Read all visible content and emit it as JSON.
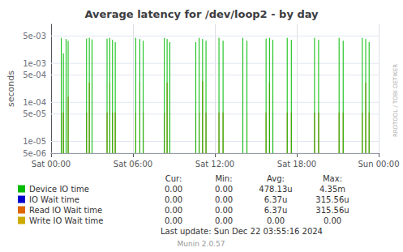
{
  "chart_data": {
    "type": "bar",
    "title": "Average latency for /dev/loop2 - by day",
    "ylabel": "seconds",
    "log": "y",
    "grid": true,
    "xlim": [
      0,
      24
    ],
    "xticks": [
      {
        "value": 0,
        "label": "Sat 00:00"
      },
      {
        "value": 6,
        "label": "Sat 06:00"
      },
      {
        "value": 12,
        "label": "Sat 12:00"
      },
      {
        "value": 18,
        "label": "Sat 18:00"
      },
      {
        "value": 24,
        "label": "Sun 00:00"
      }
    ],
    "ylim": [
      5e-06,
      0.01
    ],
    "yticks": [
      {
        "value": 5e-06,
        "label": "5e-06"
      },
      {
        "value": 1e-05,
        "label": "1e-05"
      },
      {
        "value": 5e-05,
        "label": "5e-05"
      },
      {
        "value": 0.0001,
        "label": "1e-04"
      },
      {
        "value": 0.0005,
        "label": "5e-04"
      },
      {
        "value": 0.001,
        "label": "1e-03"
      },
      {
        "value": 0.005,
        "label": "5e-03"
      }
    ],
    "x": [
      0.75,
      0.9,
      1.1,
      1.25,
      2.6,
      2.8,
      3.0,
      4.1,
      4.3,
      4.5,
      4.7,
      6.2,
      6.5,
      6.75,
      8.3,
      8.5,
      8.7,
      10.6,
      10.85,
      11.1,
      11.35,
      12.3,
      12.6,
      14.05,
      14.35,
      15.75,
      16.0,
      16.25,
      17.3,
      17.6,
      19.3,
      19.6,
      21.1,
      21.4,
      22.8,
      23.05,
      23.3
    ],
    "series": [
      {
        "name": "Device IO time",
        "color": "#00bb00",
        "values": [
          0.0045,
          0.0018,
          0.0042,
          0.0038,
          0.0043,
          0.0045,
          0.0041,
          0.0043,
          0.0045,
          0.004,
          0.0035,
          0.0045,
          0.0042,
          0.0038,
          0.0045,
          0.0042,
          0.0035,
          0.0035,
          0.0045,
          0.0042,
          0.0038,
          0.0045,
          0.0038,
          0.0045,
          0.0038,
          0.0043,
          0.0045,
          0.004,
          0.0045,
          0.004,
          0.0045,
          0.004,
          0.0045,
          0.0038,
          0.0045,
          0.0042,
          0.0035
        ]
      },
      {
        "name": "IO Wait time",
        "color": "#0000cc",
        "values": [
          null,
          null,
          null,
          null,
          null,
          null,
          null,
          null,
          null,
          null,
          null,
          null,
          null,
          null,
          null,
          null,
          null,
          null,
          null,
          null,
          null,
          null,
          null,
          null,
          null,
          null,
          null,
          null,
          null,
          null,
          null,
          null,
          null,
          null,
          null,
          null,
          null
        ]
      },
      {
        "name": "Read IO Wait time",
        "color": "#dd6600",
        "values": [
          5.5e-05,
          5.5e-05,
          0.00032,
          0.00014,
          5.5e-05,
          0.00032,
          0.00014,
          5.5e-05,
          0.00032,
          5.5e-05,
          5.5e-05,
          5.5e-05,
          0.00032,
          5.5e-05,
          5.5e-05,
          0.00032,
          5.5e-05,
          5.5e-05,
          5.5e-05,
          0.00035,
          5.5e-05,
          5.5e-05,
          5.5e-05,
          5.5e-05,
          5.5e-05,
          5.5e-05,
          0.00032,
          5.5e-05,
          5.5e-05,
          5.5e-05,
          5.5e-05,
          5.5e-05,
          5.5e-05,
          5.5e-05,
          5.5e-05,
          0.00032,
          5.5e-05
        ]
      },
      {
        "name": "Write IO Wait time",
        "color": "#ccaa00",
        "values": [
          null,
          null,
          null,
          null,
          null,
          null,
          null,
          null,
          null,
          null,
          null,
          null,
          null,
          null,
          null,
          null,
          null,
          null,
          null,
          null,
          null,
          null,
          null,
          null,
          null,
          null,
          null,
          null,
          null,
          null,
          null,
          null,
          null,
          null,
          null,
          null,
          null
        ]
      }
    ],
    "stats": {
      "columns": [
        "Cur:",
        "Min:",
        "Avg:",
        "Max:"
      ],
      "rows": [
        [
          "0.00",
          "0.00",
          "478.13u",
          "4.35m"
        ],
        [
          "0.00",
          "0.00",
          "6.37u",
          "315.56u"
        ],
        [
          "0.00",
          "0.00",
          "6.37u",
          "315.56u"
        ],
        [
          "0.00",
          "0.00",
          "0.00",
          "0.00"
        ]
      ]
    },
    "annotations": [
      "Last update: Sun Dec 22 03:55:16 2024",
      "Munin 2.0.57",
      "RRDTOOL / TOBI OETIKER"
    ]
  }
}
